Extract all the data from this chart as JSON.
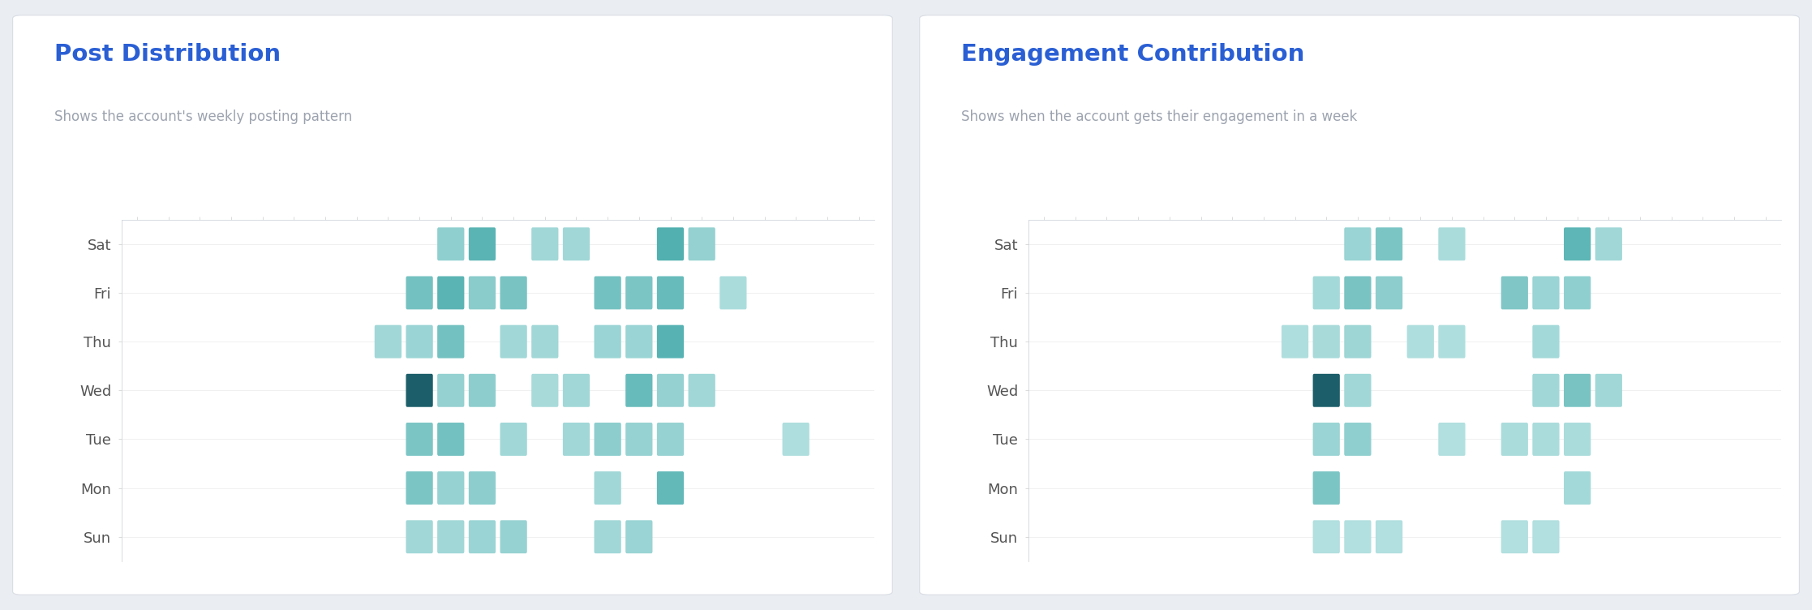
{
  "title1": "Post Distribution",
  "subtitle1": "Shows the account's weekly posting pattern",
  "title2": "Engagement Contribution",
  "subtitle2": "Shows when the account gets their engagement in a week",
  "title_color": "#2A5FD4",
  "subtitle_color": "#9CA3AF",
  "days": [
    "Sat",
    "Fri",
    "Thu",
    "Wed",
    "Tue",
    "Mon",
    "Sun"
  ],
  "n_hours": 24,
  "bg_color": "#EAEEF3",
  "panel_bg": "#FFFFFF",
  "post_data": {
    "Sat": {
      "cols": [
        10,
        11,
        13,
        14,
        17,
        18
      ],
      "intensities": [
        0.38,
        0.7,
        0.28,
        0.28,
        0.75,
        0.35
      ]
    },
    "Fri": {
      "cols": [
        9,
        10,
        11,
        12,
        15,
        16,
        17,
        19
      ],
      "intensities": [
        0.55,
        0.7,
        0.42,
        0.52,
        0.55,
        0.5,
        0.62,
        0.22
      ]
    },
    "Thu": {
      "cols": [
        8,
        9,
        10,
        12,
        13,
        15,
        16,
        17
      ],
      "intensities": [
        0.28,
        0.32,
        0.55,
        0.28,
        0.28,
        0.32,
        0.32,
        0.72
      ]
    },
    "Wed": {
      "cols": [
        9,
        10,
        11,
        13,
        14,
        16,
        17,
        18
      ],
      "intensities": [
        0.98,
        0.35,
        0.4,
        0.24,
        0.28,
        0.62,
        0.35,
        0.28
      ]
    },
    "Tue": {
      "cols": [
        9,
        10,
        12,
        14,
        15,
        16,
        17,
        21
      ],
      "intensities": [
        0.5,
        0.55,
        0.28,
        0.28,
        0.4,
        0.34,
        0.34,
        0.2
      ]
    },
    "Mon": {
      "cols": [
        9,
        10,
        11,
        15,
        17
      ],
      "intensities": [
        0.5,
        0.34,
        0.4,
        0.28,
        0.65
      ]
    },
    "Sun": {
      "cols": [
        9,
        10,
        11,
        12,
        15,
        16
      ],
      "intensities": [
        0.28,
        0.28,
        0.32,
        0.34,
        0.28,
        0.32
      ]
    }
  },
  "engagement_data": {
    "Sat": {
      "cols": [
        10,
        11,
        13,
        17,
        18
      ],
      "intensities": [
        0.32,
        0.5,
        0.22,
        0.68,
        0.28
      ]
    },
    "Fri": {
      "cols": [
        9,
        10,
        11,
        15,
        16,
        17
      ],
      "intensities": [
        0.26,
        0.52,
        0.4,
        0.48,
        0.32,
        0.38
      ]
    },
    "Thu": {
      "cols": [
        8,
        9,
        10,
        12,
        13,
        16
      ],
      "intensities": [
        0.2,
        0.24,
        0.3,
        0.2,
        0.2,
        0.26
      ]
    },
    "Wed": {
      "cols": [
        9,
        10,
        16,
        17,
        18
      ],
      "intensities": [
        0.98,
        0.28,
        0.28,
        0.52,
        0.28
      ]
    },
    "Tue": {
      "cols": [
        9,
        10,
        13,
        15,
        16,
        17
      ],
      "intensities": [
        0.32,
        0.38,
        0.18,
        0.22,
        0.22,
        0.22
      ]
    },
    "Mon": {
      "cols": [
        9,
        17
      ],
      "intensities": [
        0.5,
        0.26
      ]
    },
    "Sun": {
      "cols": [
        9,
        10,
        11,
        15,
        16
      ],
      "intensities": [
        0.18,
        0.18,
        0.18,
        0.18,
        0.18
      ]
    }
  },
  "title_fontsize": 21,
  "subtitle_fontsize": 12,
  "day_label_fontsize": 13
}
